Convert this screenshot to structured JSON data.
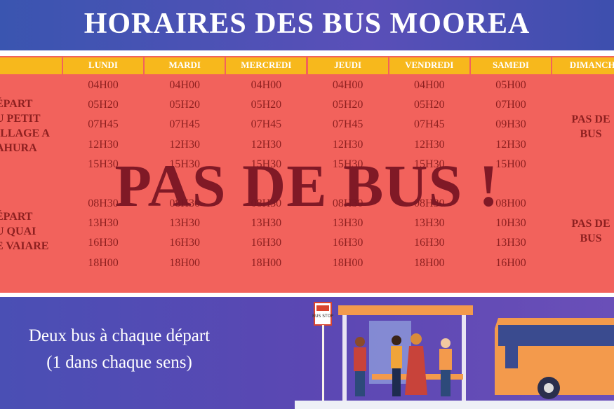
{
  "header": {
    "title": "HORAIRES DES BUS MOOREA"
  },
  "table": {
    "days": [
      "LUNDI",
      "MARDI",
      "MERCREDI",
      "JEUDI",
      "VENDREDI",
      "SAMEDI",
      "DIMANCH"
    ],
    "groups": [
      {
        "label": [
          "ÉPART",
          "U PETIT",
          "ILLAGE A",
          "AHURA"
        ],
        "times": [
          [
            "04H00",
            "04H00",
            "04H00",
            "04H00",
            "04H00",
            "05H00"
          ],
          [
            "05H20",
            "05H20",
            "05H20",
            "05H20",
            "05H20",
            "07H00"
          ],
          [
            "07H45",
            "07H45",
            "07H45",
            "07H45",
            "07H45",
            "09H30"
          ],
          [
            "12H30",
            "12H30",
            "12H30",
            "12H30",
            "12H30",
            "12H30"
          ],
          [
            "15H30",
            "15H30",
            "15H30",
            "15H30",
            "15H30",
            "15H00"
          ]
        ],
        "sunday": "PAS DE BUS"
      },
      {
        "label": [
          "ÉPART",
          "U QUAI",
          "E VAIARE"
        ],
        "times": [
          [
            "08H30",
            "08H30",
            "08H30",
            "08H30",
            "08H30",
            "08H00"
          ],
          [
            "13H30",
            "13H30",
            "13H30",
            "13H30",
            "13H30",
            "10H30"
          ],
          [
            "16H30",
            "16H30",
            "16H30",
            "16H30",
            "16H30",
            "13H30"
          ],
          [
            "18H00",
            "18H00",
            "18H00",
            "18H00",
            "18H00",
            "16H00"
          ]
        ],
        "sunday": "PAS DE BUS"
      }
    ]
  },
  "stamp": "PAS DE BUS !",
  "footer": {
    "line1": "Deux bus à chaque départ",
    "line2": "(1 dans chaque sens)",
    "sign": "BUS STOP"
  }
}
